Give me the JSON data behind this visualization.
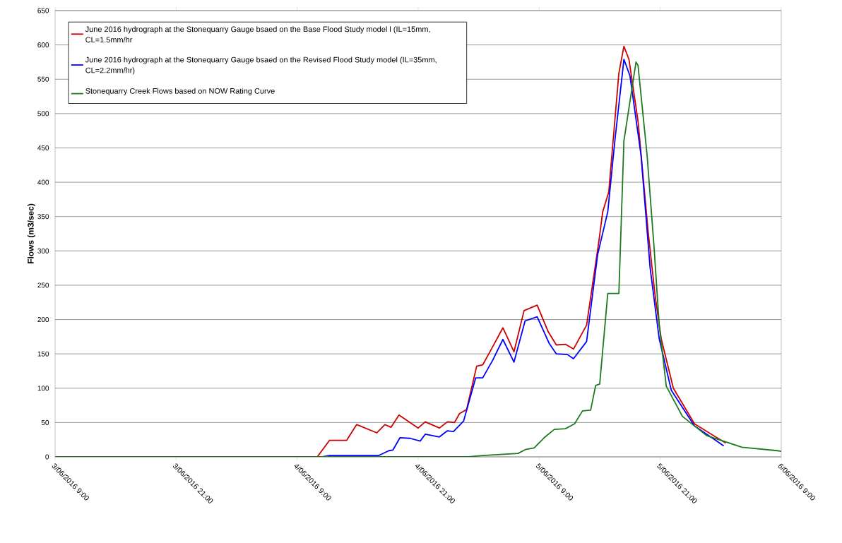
{
  "chart_data": {
    "type": "line",
    "ylabel": "Flows (m3/sec)",
    "ylim": [
      0,
      650
    ],
    "yticks": [
      0,
      50,
      100,
      150,
      200,
      250,
      300,
      350,
      400,
      450,
      500,
      550,
      600,
      650
    ],
    "xlim": [
      "2016-06-03T09:00",
      "2016-06-06T09:00"
    ],
    "xticks": [
      {
        "value": "2016-06-03T09:00",
        "label": "3/06/2016 9:00"
      },
      {
        "value": "2016-06-03T21:00",
        "label": "3/06/2016 21:00"
      },
      {
        "value": "2016-06-04T09:00",
        "label": "4/06/2016 9:00"
      },
      {
        "value": "2016-06-04T21:00",
        "label": "4/06/2016 21:00"
      },
      {
        "value": "2016-06-05T09:00",
        "label": "5/06/2016 9:00"
      },
      {
        "value": "2016-06-05T21:00",
        "label": "5/06/2016 21:00"
      },
      {
        "value": "2016-06-06T09:00",
        "label": "6/06/2016 9:00"
      }
    ],
    "grid": "y",
    "legend": "top left",
    "series": [
      {
        "name": "June 2016 hydrograph at the Stonequarry Gauge bsaed on the Base Flood Study model l (IL=15mm, CL=1.5mm/hr",
        "color": "#cc0000",
        "x": [
          "2016-06-03T09:00",
          "2016-06-04T11:00",
          "2016-06-04T12:12",
          "2016-06-04T13:54",
          "2016-06-04T14:54",
          "2016-06-04T16:54",
          "2016-06-04T17:42",
          "2016-06-04T18:18",
          "2016-06-04T19:06",
          "2016-06-04T21:00",
          "2016-06-04T21:42",
          "2016-06-04T23:06",
          "2016-06-04T23:54",
          "2016-06-05T00:36",
          "2016-06-05T01:06",
          "2016-06-05T01:48",
          "2016-06-05T02:48",
          "2016-06-05T03:24",
          "2016-06-05T04:18",
          "2016-06-05T05:24",
          "2016-06-05T06:30",
          "2016-06-05T07:30",
          "2016-06-05T08:48",
          "2016-06-05T09:54",
          "2016-06-05T10:42",
          "2016-06-05T11:36",
          "2016-06-05T12:24",
          "2016-06-05T13:42",
          "2016-06-05T14:54",
          "2016-06-05T15:18",
          "2016-06-05T15:54",
          "2016-06-05T16:54",
          "2016-06-05T17:24",
          "2016-06-05T17:54",
          "2016-06-05T18:48",
          "2016-06-05T19:48",
          "2016-06-05T20:30",
          "2016-06-05T21:06",
          "2016-06-05T22:18",
          "2016-06-06T00:24",
          "2016-06-06T03:30"
        ],
        "values": [
          0,
          0,
          24,
          24,
          47,
          35,
          47,
          43,
          61,
          42,
          51,
          42,
          51,
          50,
          63,
          69,
          132,
          134,
          158,
          188,
          153,
          213,
          221,
          182,
          163,
          164,
          157,
          192,
          312,
          357,
          386,
          559,
          598,
          579,
          489,
          328,
          234,
          172,
          100,
          48,
          20
        ]
      },
      {
        "name": "June 2016 hydrograph at the Stonequarry Gauge bsaed on the Revised Flood Study model (IL=35mm, CL=2.2mm/hr)",
        "color": "#0000ff",
        "x": [
          "2016-06-03T09:00",
          "2016-06-04T11:30",
          "2016-06-04T12:12",
          "2016-06-04T17:06",
          "2016-06-04T18:06",
          "2016-06-04T18:30",
          "2016-06-04T19:12",
          "2016-06-04T20:12",
          "2016-06-04T21:12",
          "2016-06-04T21:42",
          "2016-06-04T23:06",
          "2016-06-04T23:54",
          "2016-06-05T00:30",
          "2016-06-05T01:30",
          "2016-06-05T02:42",
          "2016-06-05T03:24",
          "2016-06-05T04:24",
          "2016-06-05T05:24",
          "2016-06-05T06:30",
          "2016-06-05T07:36",
          "2016-06-05T08:48",
          "2016-06-05T10:00",
          "2016-06-05T10:42",
          "2016-06-05T11:48",
          "2016-06-05T12:24",
          "2016-06-05T13:42",
          "2016-06-05T14:48",
          "2016-06-05T15:48",
          "2016-06-05T16:30",
          "2016-06-05T17:24",
          "2016-06-05T18:00",
          "2016-06-05T19:06",
          "2016-06-05T20:00",
          "2016-06-05T20:54",
          "2016-06-05T22:06",
          "2016-06-06T00:24",
          "2016-06-06T03:18"
        ],
        "values": [
          0,
          0,
          2,
          2,
          9,
          10,
          28,
          27,
          23,
          33,
          29,
          38,
          37,
          52,
          115,
          115,
          141,
          171,
          138,
          198,
          204,
          165,
          150,
          149,
          143,
          168,
          295,
          357,
          460,
          579,
          555,
          439,
          275,
          172,
          97,
          45,
          16
        ]
      },
      {
        "name": "Stonequarry Creek Flows based on NOW Rating Curve",
        "color": "#1e7a1e",
        "x": [
          "2016-06-03T09:00",
          "2016-06-05T02:00",
          "2016-06-05T03:24",
          "2016-06-05T06:54",
          "2016-06-05T07:42",
          "2016-06-05T08:30",
          "2016-06-05T09:30",
          "2016-06-05T10:30",
          "2016-06-05T11:36",
          "2016-06-05T12:30",
          "2016-06-05T13:18",
          "2016-06-05T14:06",
          "2016-06-05T14:36",
          "2016-06-05T15:00",
          "2016-06-05T15:48",
          "2016-06-05T16:54",
          "2016-06-05T17:24",
          "2016-06-05T17:42",
          "2016-06-05T18:36",
          "2016-06-05T18:48",
          "2016-06-05T19:42",
          "2016-06-05T20:24",
          "2016-06-05T20:54",
          "2016-06-05T21:36",
          "2016-06-05T23:12",
          "2016-06-06T01:36",
          "2016-06-06T05:06",
          "2016-06-06T08:36",
          "2016-06-06T09:00"
        ],
        "values": [
          0,
          0,
          2,
          5,
          11,
          13,
          28,
          40,
          41,
          48,
          67,
          68,
          104,
          106,
          238,
          238,
          460,
          489,
          575,
          570,
          439,
          303,
          192,
          103,
          59,
          31,
          14,
          9,
          8
        ]
      }
    ]
  }
}
